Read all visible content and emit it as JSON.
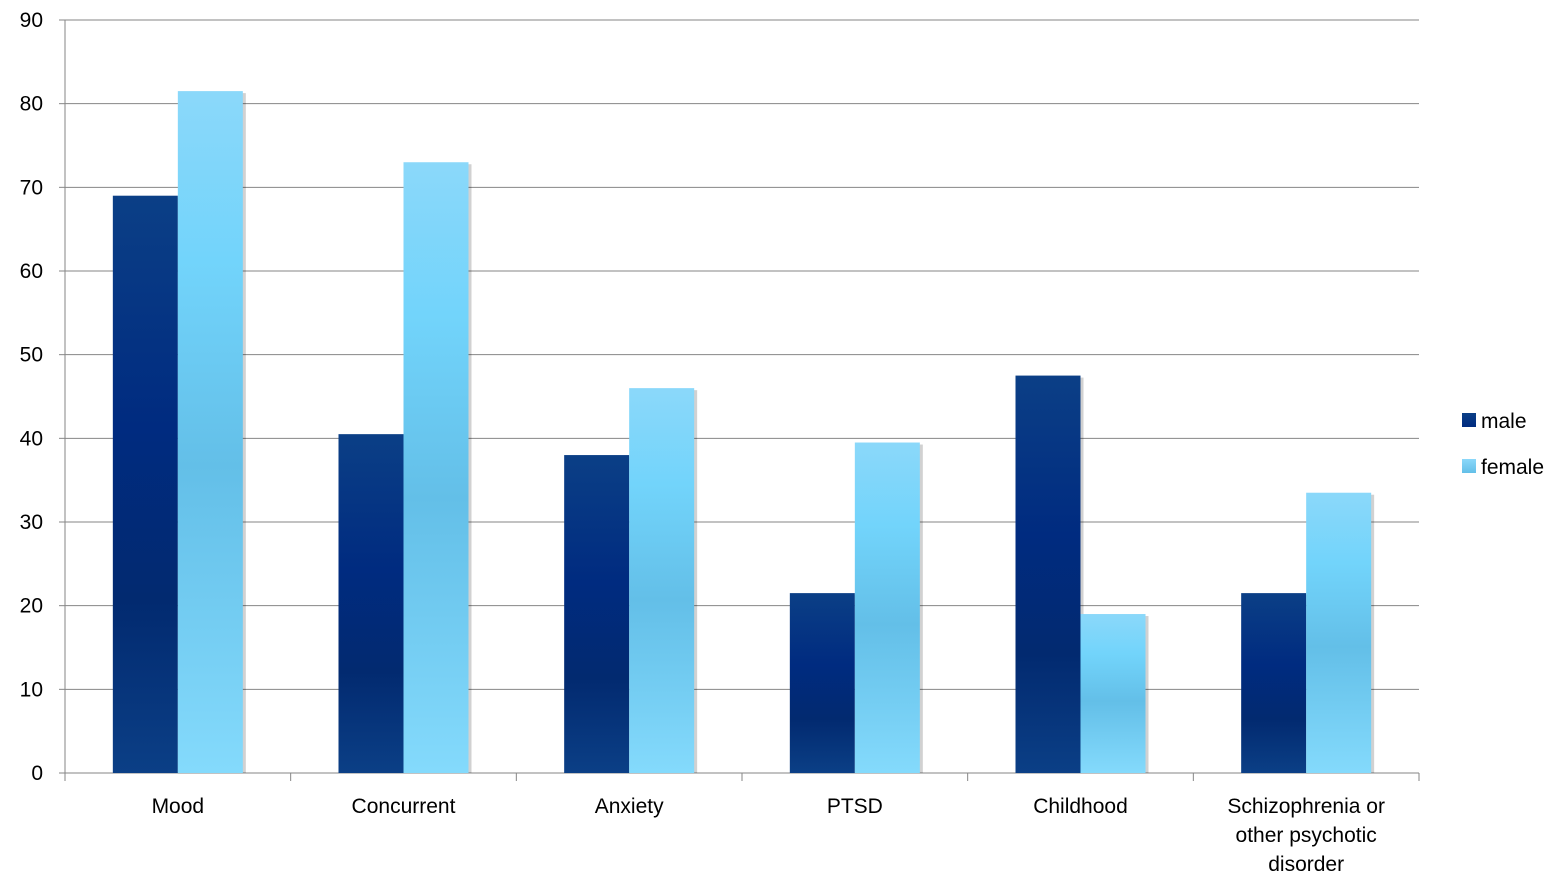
{
  "chart_data": {
    "type": "bar",
    "title": "",
    "xlabel": "",
    "ylabel": "",
    "ylim": [
      0,
      90
    ],
    "yticks": [
      0,
      10,
      20,
      30,
      40,
      50,
      60,
      70,
      80,
      90
    ],
    "grid": true,
    "legend_position": "right",
    "categories": [
      [
        "Mood"
      ],
      [
        "Concurrent"
      ],
      [
        "Anxiety"
      ],
      [
        "PTSD"
      ],
      [
        "Childhood"
      ],
      [
        "Schizophrenia or",
        "other psychotic",
        "disorder"
      ]
    ],
    "series": [
      {
        "name": "male",
        "color": "#002b80",
        "values": [
          69,
          40.5,
          38,
          21.5,
          47.5,
          21.5
        ]
      },
      {
        "name": "female",
        "color": "#6ccff6",
        "values": [
          81.5,
          73,
          46,
          39.5,
          19,
          33.5
        ]
      }
    ]
  }
}
